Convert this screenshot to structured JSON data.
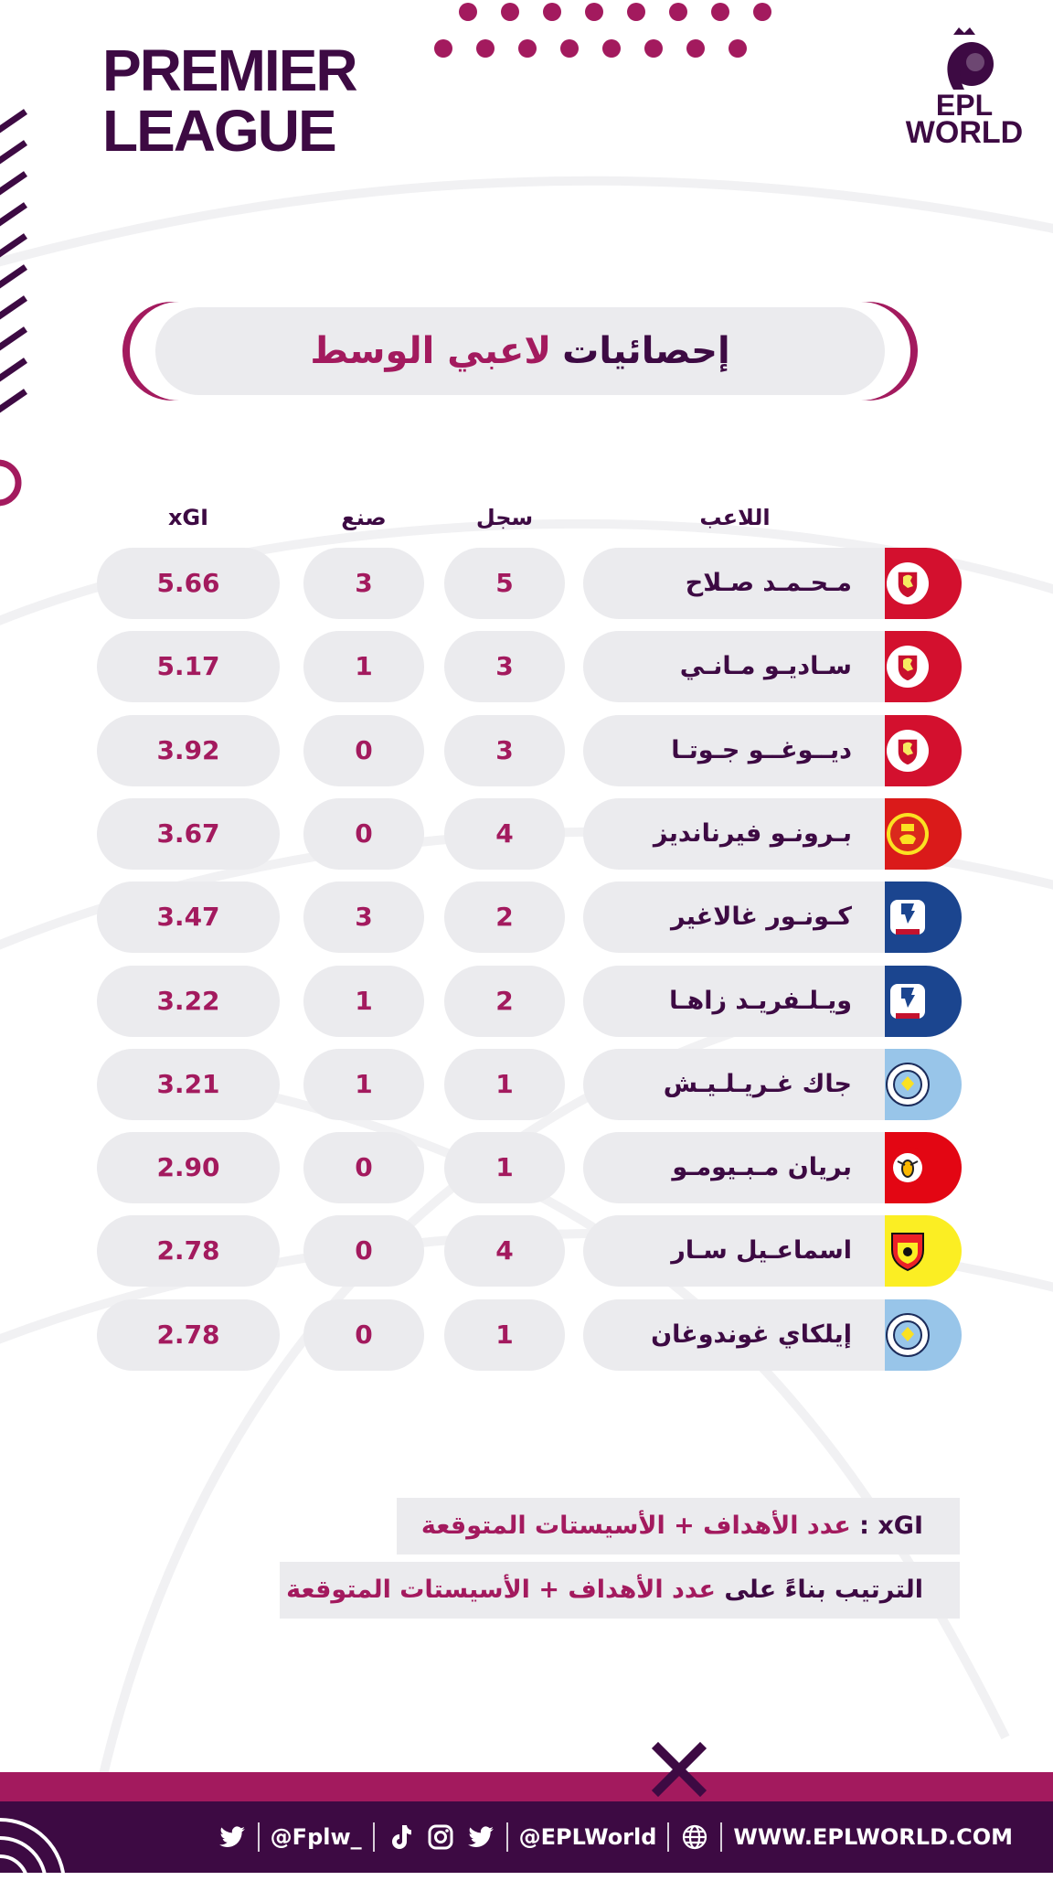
{
  "header": {
    "league_line1": "PREMIER",
    "league_line2": "LEAGUE",
    "brand_line1": "EPL",
    "brand_line2": "WORLD"
  },
  "title": {
    "part1": "إحصائيات",
    "part2": "لاعبي الوسط"
  },
  "columns": {
    "player": "اللاعب",
    "goals": "سجل",
    "assists": "صنع",
    "xgi": "xGI"
  },
  "players": [
    {
      "name": "مـحـمـد صـلاح",
      "goals": "5",
      "assists": "3",
      "xgi": "5.66",
      "club_color": "#d3102e",
      "club_icon": "liverpool-crest"
    },
    {
      "name": "سـاديـو مـانـي",
      "goals": "3",
      "assists": "1",
      "xgi": "5.17",
      "club_color": "#d3102e",
      "club_icon": "liverpool-crest"
    },
    {
      "name": "ديــوغــو جـوتـا",
      "goals": "3",
      "assists": "0",
      "xgi": "3.92",
      "club_color": "#d3102e",
      "club_icon": "liverpool-crest"
    },
    {
      "name": "بـرونـو فيرنانديز",
      "goals": "4",
      "assists": "0",
      "xgi": "3.67",
      "club_color": "#da1a1a",
      "club_icon": "manchester-united-crest"
    },
    {
      "name": "كـونـور غالاغير",
      "goals": "2",
      "assists": "3",
      "xgi": "3.47",
      "club_color": "#1b458f",
      "club_icon": "crystal-palace-crest"
    },
    {
      "name": "ويـلـفريـد زاهـا",
      "goals": "2",
      "assists": "1",
      "xgi": "3.22",
      "club_color": "#1b458f",
      "club_icon": "crystal-palace-crest"
    },
    {
      "name": "جاك غـريـلـيـش",
      "goals": "1",
      "assists": "1",
      "xgi": "3.21",
      "club_color": "#98c5e9",
      "club_icon": "manchester-city-crest"
    },
    {
      "name": "بريان مـبـيومـو",
      "goals": "1",
      "assists": "0",
      "xgi": "2.90",
      "club_color": "#e30613",
      "club_icon": "brentford-crest"
    },
    {
      "name": "اسماعـيل سـار",
      "goals": "4",
      "assists": "0",
      "xgi": "2.78",
      "club_color": "#fbee23",
      "club_icon": "watford-crest"
    },
    {
      "name": "إيلكاي غوندوغان",
      "goals": "1",
      "assists": "0",
      "xgi": "2.78",
      "club_color": "#98c5e9",
      "club_icon": "manchester-city-crest"
    }
  ],
  "notes": {
    "xgi_key": "xGI",
    "xgi_sep": " : ",
    "xgi_def": "عدد الأهداف + الأسيستات المتوقعة",
    "rank_prefix": "الترتيب بناءً على",
    "rank_value": "عدد الأهداف + الأسيستات المتوقعة"
  },
  "footer": {
    "handle1": "@Fplw_",
    "handle2": "@EPLWorld",
    "website": "WWW.EPLWORLD.COM"
  },
  "colors": {
    "primary_dark": "#3d0a43",
    "accent": "#a31a5e",
    "pill_bg": "#ebebee"
  }
}
